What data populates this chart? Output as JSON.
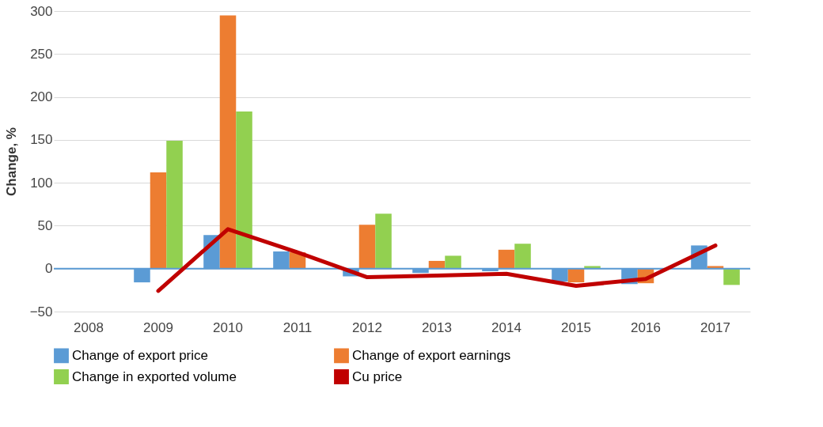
{
  "chart_data": {
    "type": "bar",
    "ylabel": "Change, %",
    "categories": [
      "2008",
      "2009",
      "2010",
      "2011",
      "2012",
      "2013",
      "2014",
      "2015",
      "2016",
      "2017"
    ],
    "series": [
      {
        "name": "Change of export price",
        "color": "#5b9bd5",
        "values": [
          null,
          -16,
          39,
          20,
          -9,
          -5,
          -3,
          -15,
          -18,
          27
        ]
      },
      {
        "name": "Change of export earnings",
        "color": "#ed7d31",
        "values": [
          null,
          112,
          295,
          19,
          51,
          9,
          22,
          -16,
          -17,
          3
        ]
      },
      {
        "name": "Change in exported volume",
        "color": "#92d050",
        "values": [
          null,
          149,
          183,
          0,
          64,
          15,
          29,
          3,
          0,
          -19
        ]
      },
      {
        "name": "Cu price",
        "color": "#c00000",
        "type": "line",
        "values": [
          null,
          -26,
          46,
          19,
          -10,
          -8,
          -6,
          -20,
          -12,
          27
        ]
      }
    ],
    "ylim": [
      -50,
      300
    ],
    "yticks": [
      -50,
      0,
      50,
      100,
      150,
      200,
      250,
      300
    ],
    "ref_lines": [
      {
        "axis": "y",
        "value": 0,
        "color": "#5b9bd5"
      }
    ],
    "grid": "y",
    "legend": "bottom",
    "line_style": "solid",
    "marker": "none"
  }
}
